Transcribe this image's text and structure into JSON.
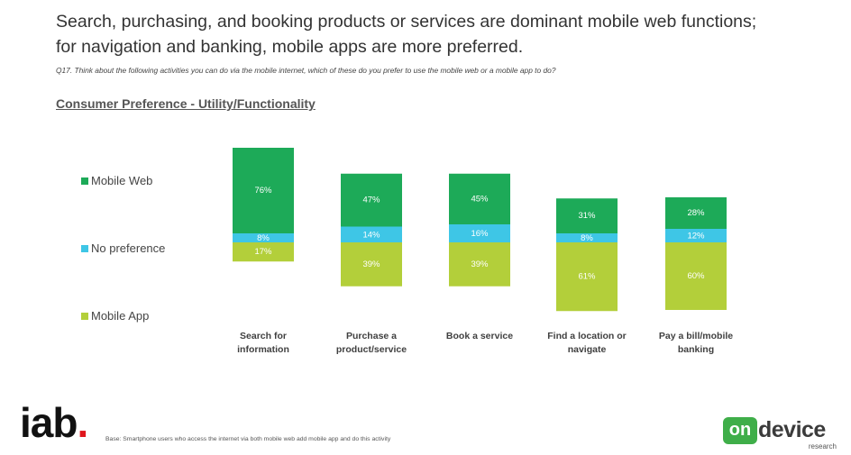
{
  "title_lines": [
    "Search, purchasing, and booking products or services are dominant mobile web functions;",
    "for navigation and banking, mobile apps are more preferred."
  ],
  "question": "Q17. Think about the following activities you can do via the mobile internet, which of these do you prefer to use the mobile web or a mobile app to do?",
  "section_title": "Consumer Preference - Utility/Functionality",
  "base_note": "Base: Smartphone users who access the internet via both mobile web add mobile app and do this activity",
  "logos": {
    "iab_text": "iab",
    "iab_dot": ".",
    "ondevice_badge": "on",
    "ondevice_word": "device",
    "ondevice_sub": "research"
  },
  "colors": {
    "mobile_web": "#1daa58",
    "no_preference": "#3ec6e6",
    "mobile_app": "#b3cf3a"
  },
  "chart_data": {
    "type": "bar",
    "stacked": true,
    "categories": [
      [
        "Search for",
        "information"
      ],
      [
        "Purchase a",
        "product/service"
      ],
      [
        "Book a service"
      ],
      [
        "Find a location or",
        "navigate"
      ],
      [
        "Pay a bill/mobile",
        "banking"
      ]
    ],
    "series": [
      {
        "name": "Mobile Web",
        "values": [
          76,
          47,
          45,
          31,
          28
        ],
        "labels": [
          "76%",
          "47%",
          "45%",
          "31%",
          "28%"
        ],
        "color": "#1daa58"
      },
      {
        "name": "No preference",
        "values": [
          8,
          14,
          16,
          8,
          12
        ],
        "labels": [
          "8%",
          "14%",
          "16%",
          "8%",
          "12%"
        ],
        "color": "#3ec6e6"
      },
      {
        "name": "Mobile App",
        "values": [
          17,
          39,
          39,
          61,
          60
        ],
        "labels": [
          "17%",
          "39%",
          "39%",
          "61%",
          "60%"
        ],
        "color": "#b3cf3a"
      }
    ],
    "legend_position": "left",
    "grid": false
  }
}
